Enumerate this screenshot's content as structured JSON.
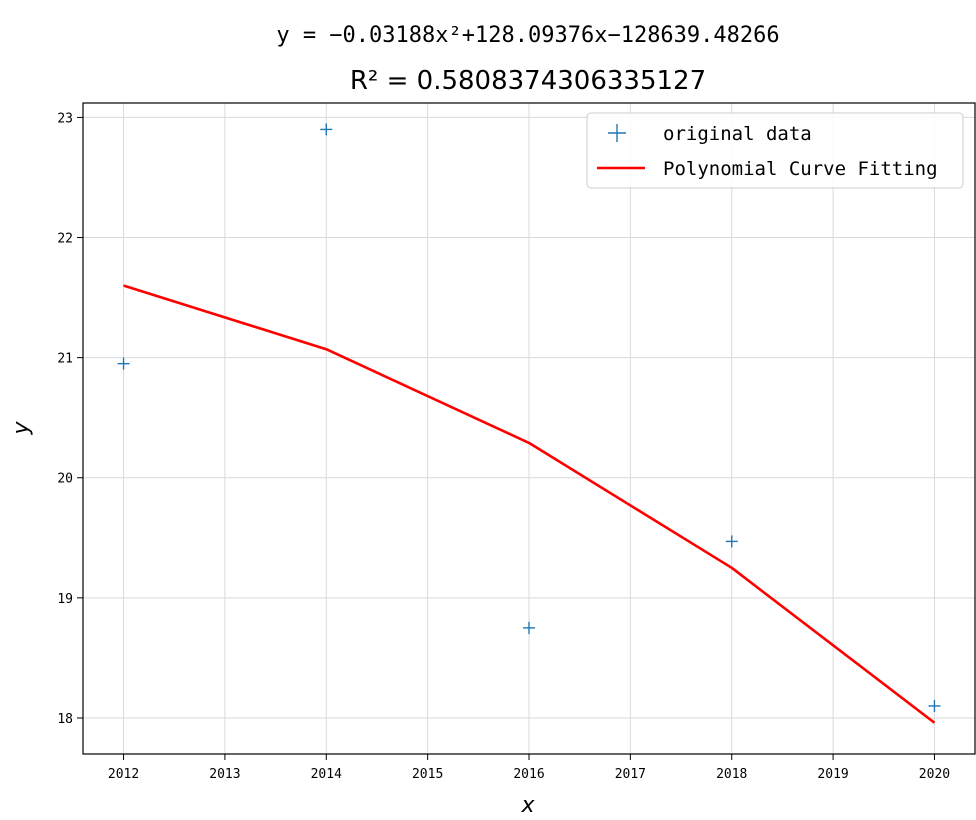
{
  "chart_data": {
    "type": "scatter",
    "title_equation": "y = −0.03188x²+128.09376x−128639.48266",
    "title_r2": "R² = 0.5808374306335127",
    "xlabel": "x",
    "ylabel": "y",
    "xlim": [
      2011.6,
      2020.4
    ],
    "ylim": [
      17.7,
      23.12
    ],
    "x_ticks": [
      2012,
      2013,
      2014,
      2015,
      2016,
      2017,
      2018,
      2019,
      2020
    ],
    "y_ticks": [
      18,
      19,
      20,
      21,
      22,
      23
    ],
    "grid": true,
    "legend_position": "top-right",
    "series": [
      {
        "name": "original data",
        "kind": "scatter",
        "marker": "+",
        "color": "#1f77b4",
        "x": [
          2012,
          2014,
          2016,
          2018,
          2020
        ],
        "y": [
          20.95,
          22.9,
          18.75,
          19.47,
          18.1
        ]
      },
      {
        "name": "Polynomial Curve Fitting",
        "kind": "line",
        "color": "#ff0000",
        "x": [
          2012,
          2014,
          2016,
          2018,
          2020
        ],
        "y": [
          21.6,
          21.07,
          20.29,
          19.25,
          17.96
        ]
      }
    ]
  }
}
